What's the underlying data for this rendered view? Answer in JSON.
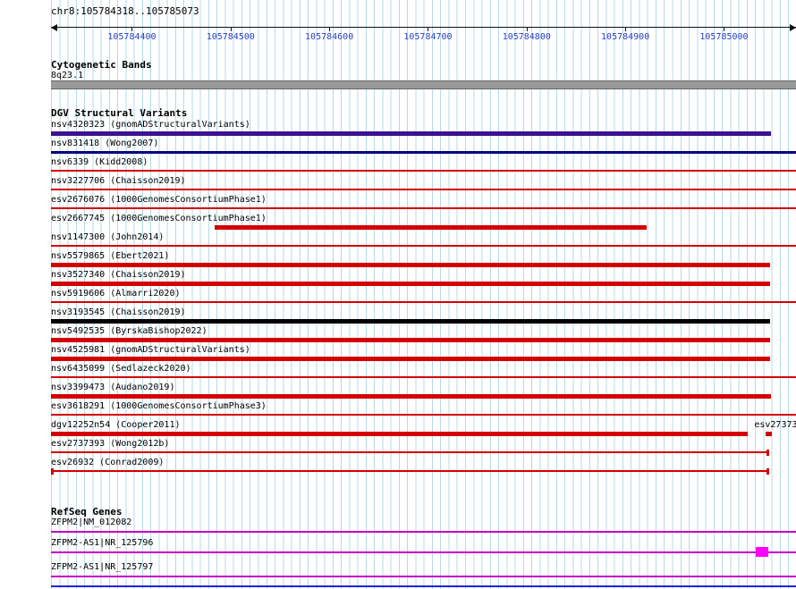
{
  "header": {
    "position": "chr8:105784318..105785073"
  },
  "ruler": {
    "start": 105784318,
    "end": 105785073,
    "ticks": [
      "105784400",
      "105784500",
      "105784600",
      "105784700",
      "105784800",
      "105784900",
      "105785000"
    ]
  },
  "cytogenetic": {
    "section_title": "Cytogenetic Bands",
    "band_label": "8q23.1",
    "band_color": "#9a9a9a"
  },
  "dgv": {
    "section_title": "DGV Structural Variants",
    "variants": [
      {
        "label": "nsv4320323 (gnomADStructuralVariants)",
        "color": "#3c1192",
        "thickness": "thick",
        "start_pct": 0,
        "end_pct": 96.6
      },
      {
        "label": "nsv831418 (Wong2007)",
        "color": "#000080",
        "thickness": "medium",
        "start_pct": 0,
        "end_pct": 100
      },
      {
        "label": "nsv6339 (Kidd2008)",
        "color": "#d40000",
        "thickness": "thin",
        "start_pct": 0,
        "end_pct": 100
      },
      {
        "label": "nsv3227706 (Chaisson2019)",
        "color": "#d40000",
        "thickness": "thin",
        "start_pct": 0,
        "end_pct": 100
      },
      {
        "label": "esv2676076 (1000GenomesConsortiumPhase1)",
        "color": "#d40000",
        "thickness": "thin",
        "start_pct": 0,
        "end_pct": 100
      },
      {
        "label": "esv2667745 (1000GenomesConsortiumPhase1)",
        "color": "#d40000",
        "thickness": "thick",
        "start_pct": 22,
        "end_pct": 80
      },
      {
        "label": "nsv1147300 (John2014)",
        "color": "#d40000",
        "thickness": "thin",
        "start_pct": 0,
        "end_pct": 100
      },
      {
        "label": "nsv5579865 (Ebert2021)",
        "color": "#d40000",
        "thickness": "thick",
        "start_pct": 0,
        "end_pct": 96.5
      },
      {
        "label": "nsv3527340 (Chaisson2019)",
        "color": "#d40000",
        "thickness": "thick",
        "start_pct": 0,
        "end_pct": 96.5
      },
      {
        "label": "nsv5919606 (Almarri2020)",
        "color": "#d40000",
        "thickness": "thin",
        "start_pct": 0,
        "end_pct": 100
      },
      {
        "label": "nsv3193545 (Chaisson2019)",
        "color": "#000000",
        "thickness": "thick",
        "start_pct": 0,
        "end_pct": 96.5
      },
      {
        "label": "nsv5492535 (ByrskaBishop2022)",
        "color": "#d40000",
        "thickness": "thick",
        "start_pct": 0,
        "end_pct": 96.5
      },
      {
        "label": "nsv4525981 (gnomADStructuralVariants)",
        "color": "#d40000",
        "thickness": "thick",
        "start_pct": 0,
        "end_pct": 96.5
      },
      {
        "label": "nsv6435099 (Sedlazeck2020)",
        "color": "#d40000",
        "thickness": "thin",
        "start_pct": 0,
        "end_pct": 100
      },
      {
        "label": "nsv3399473 (Audano2019)",
        "color": "#d40000",
        "thickness": "thick",
        "start_pct": 0,
        "end_pct": 96.6
      },
      {
        "label": "esv3618291 (1000GenomesConsortiumPhase3)",
        "color": "#d40000",
        "thickness": "thin",
        "start_pct": 0,
        "end_pct": 100
      },
      {
        "label": "dgv12252n54 (Cooper2011)",
        "color": "#d40000",
        "thickness": "thick",
        "start_pct": 0,
        "end_pct": 93.5,
        "right_label": "esv27373",
        "extra": {
          "thickness": "thick",
          "start_pct": 95.9,
          "end_pct": 96.8
        }
      },
      {
        "label": "esv2737393 (Wong2012b)",
        "color": "#d40000",
        "thickness": "thin",
        "start_pct": 0,
        "end_pct": 96.4,
        "right_cap": true
      },
      {
        "label": "esv26932 (Conrad2009)",
        "color": "#d40000",
        "thickness": "thin",
        "start_pct": 0,
        "end_pct": 96.4,
        "left_cap": true,
        "right_cap": true
      }
    ]
  },
  "refseq": {
    "section_title": "RefSeq Genes",
    "genes": [
      {
        "label": "ZFPM2|NM_012082",
        "color": "#c400c4",
        "start_pct": 0,
        "end_pct": 100
      },
      {
        "label": "ZFPM2-AS1|NR_125796",
        "color": "#c400c4",
        "start_pct": 0,
        "end_pct": 100,
        "exon": {
          "start_pct": 94.6,
          "end_pct": 96.3,
          "color": "#ff00ff"
        }
      },
      {
        "label": "ZFPM2-AS1|NR_125797",
        "color": "#c400c4",
        "start_pct": 0,
        "end_pct": 100
      }
    ]
  },
  "footer": {
    "line_color": "#2222dd"
  },
  "colors": {
    "grid": "#b5d9e9",
    "ruler_text": "#2b3fc0",
    "ruler_line": "#111111"
  }
}
